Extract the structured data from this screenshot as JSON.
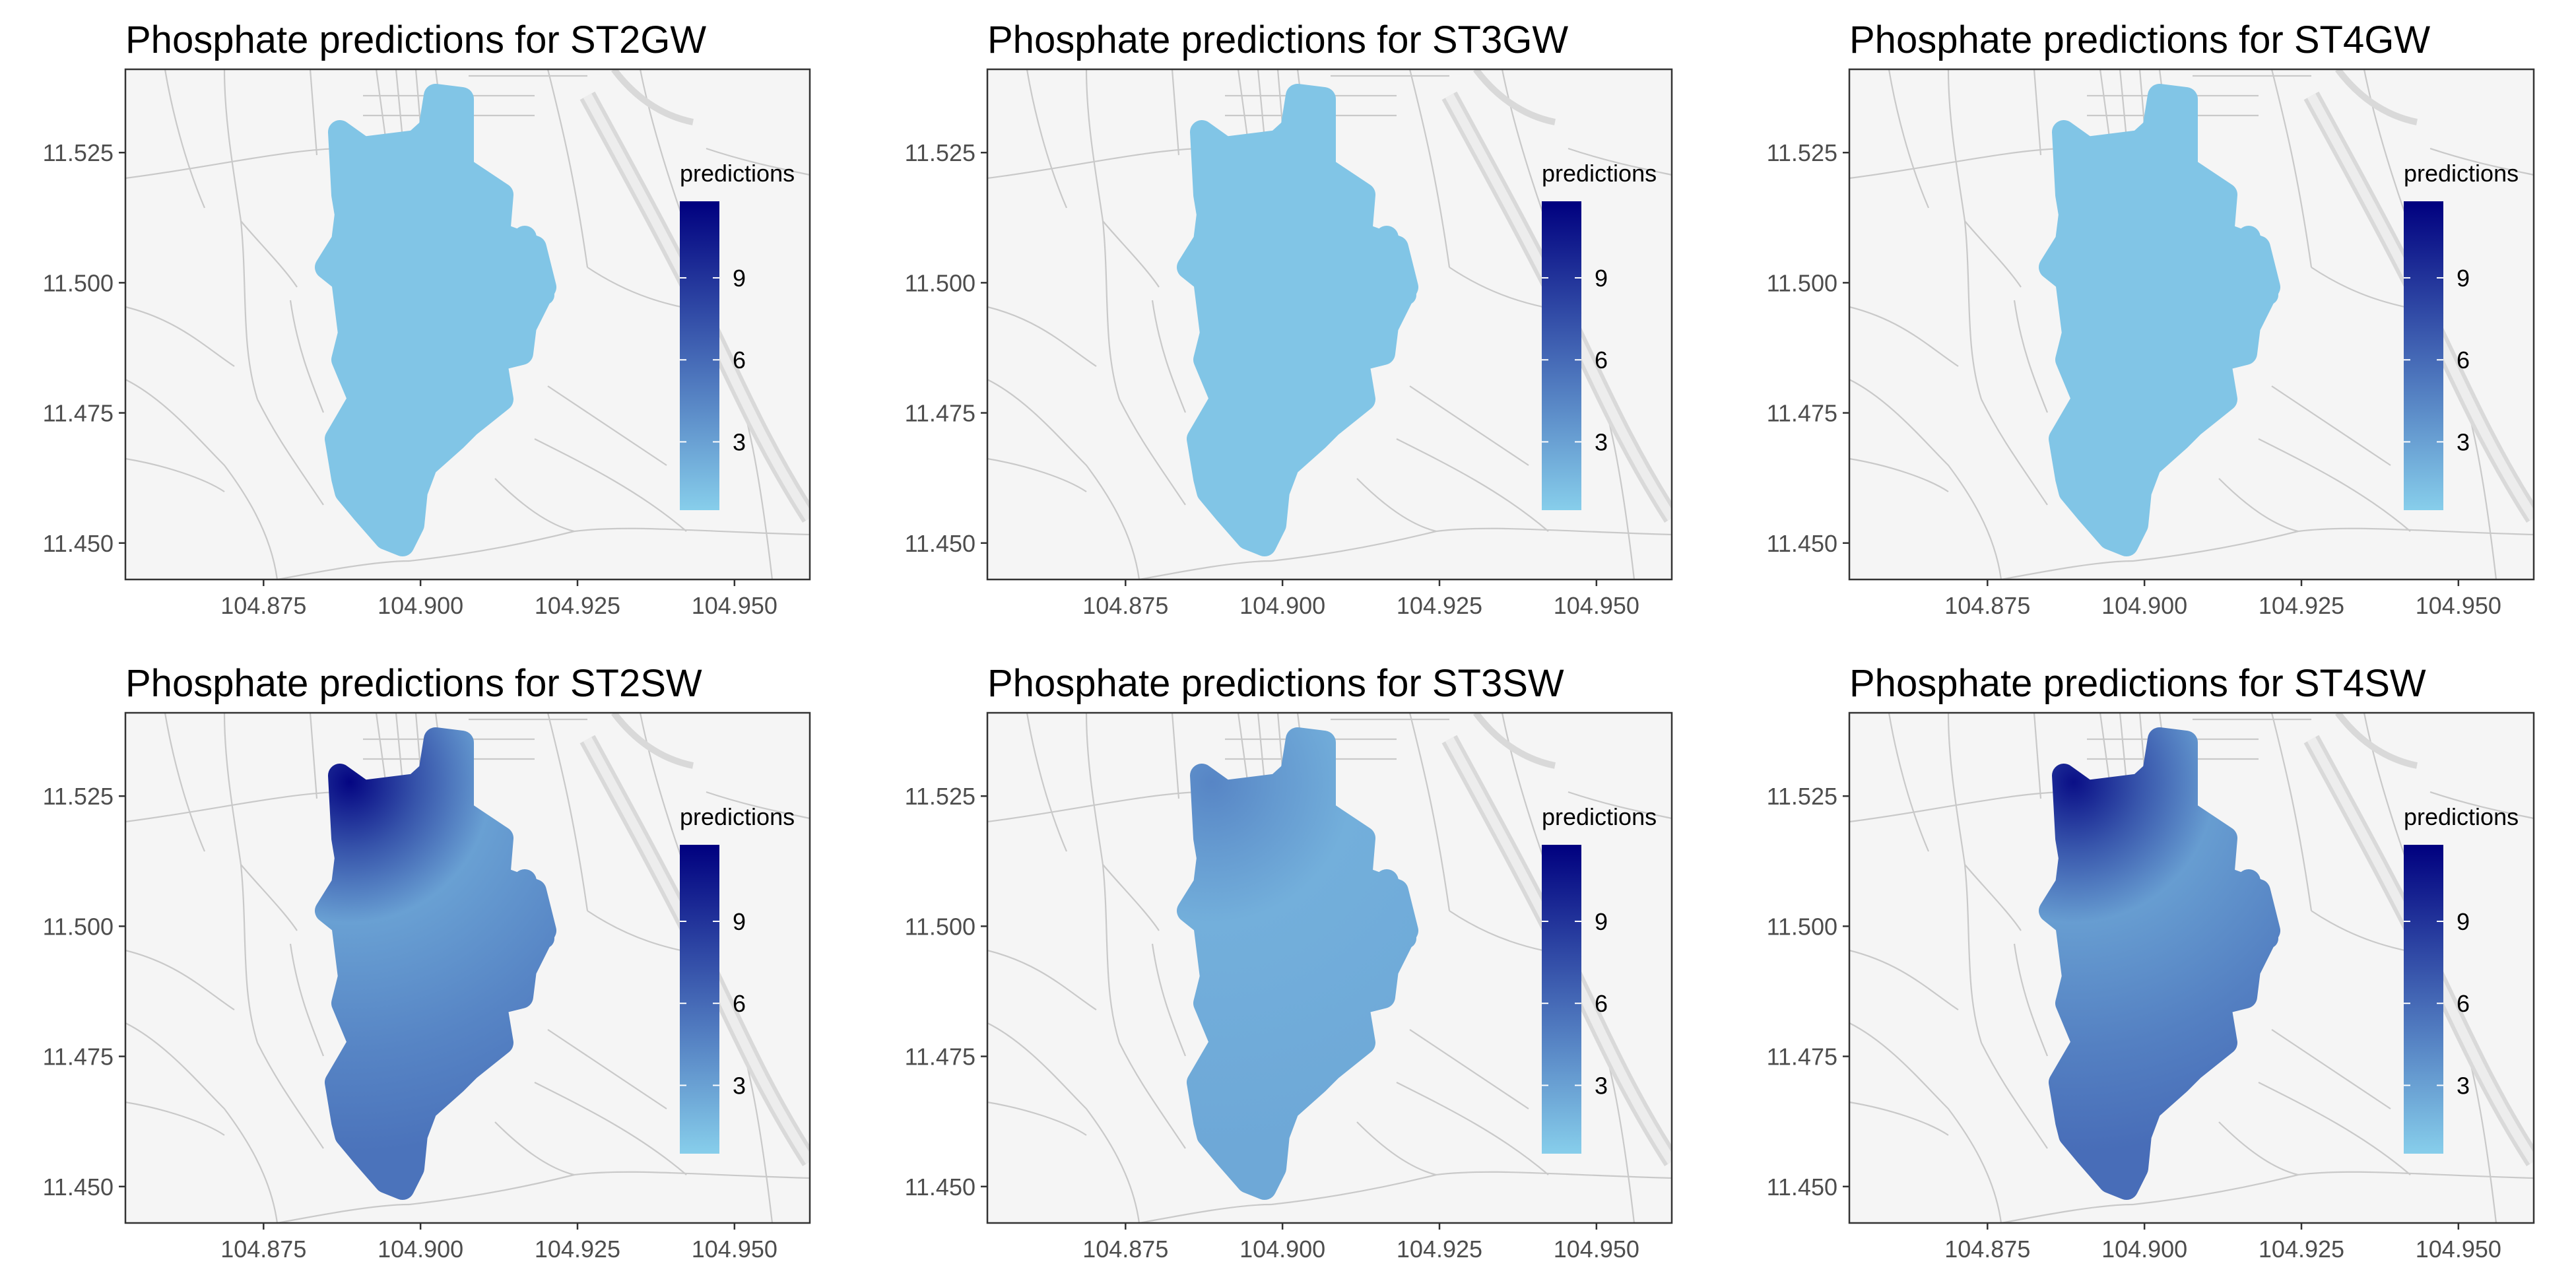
{
  "figure": {
    "panel_title_prefix": "Phosphate predictions for"
  },
  "colors": {
    "scale_low": "#87ceeb",
    "scale_high": "#00007f",
    "map_background": "#f5f5f5",
    "road": "#c9c9c9",
    "major_road": "#d9d9d9",
    "axis_text": "#4d4d4d",
    "title_text": "#000000"
  },
  "chart_data": [
    {
      "type": "heatmap",
      "title": "Phosphate predictions for ST2GW",
      "xlabel": "",
      "ylabel": "",
      "xlim": [
        104.853,
        104.962
      ],
      "ylim": [
        11.443,
        11.541
      ],
      "x_ticks": [
        "104.875",
        "104.900",
        "104.925",
        "104.950"
      ],
      "x_tick_values": [
        104.875,
        104.9,
        104.925,
        104.95
      ],
      "y_ticks": [
        "11.525",
        "11.500",
        "11.475",
        "11.450"
      ],
      "y_tick_values": [
        11.525,
        11.5,
        11.475,
        11.45
      ],
      "legend": {
        "title": "predictions",
        "ticks": [
          "9",
          "6",
          "3"
        ],
        "tick_values": [
          9,
          6,
          3
        ],
        "range": [
          0.5,
          11.8
        ],
        "position": "right"
      },
      "predictions": {
        "hotspot": 1.0,
        "center": 1.0,
        "body": 1.0,
        "east": 1.0
      },
      "grid": false
    },
    {
      "type": "heatmap",
      "title": "Phosphate predictions for ST3GW",
      "xlabel": "",
      "ylabel": "",
      "xlim": [
        104.853,
        104.962
      ],
      "ylim": [
        11.443,
        11.541
      ],
      "x_ticks": [
        "104.875",
        "104.900",
        "104.925",
        "104.950"
      ],
      "x_tick_values": [
        104.875,
        104.9,
        104.925,
        104.95
      ],
      "y_ticks": [
        "11.525",
        "11.500",
        "11.475",
        "11.450"
      ],
      "y_tick_values": [
        11.525,
        11.5,
        11.475,
        11.45
      ],
      "legend": {
        "title": "predictions",
        "ticks": [
          "9",
          "6",
          "3"
        ],
        "tick_values": [
          9,
          6,
          3
        ],
        "range": [
          0.5,
          11.8
        ],
        "position": "right"
      },
      "predictions": {
        "hotspot": 1.0,
        "center": 1.0,
        "body": 1.0,
        "east": 1.0
      },
      "grid": false
    },
    {
      "type": "heatmap",
      "title": "Phosphate predictions for ST4GW",
      "xlabel": "",
      "ylabel": "",
      "xlim": [
        104.853,
        104.962
      ],
      "ylim": [
        11.443,
        11.541
      ],
      "x_ticks": [
        "104.875",
        "104.900",
        "104.925",
        "104.950"
      ],
      "x_tick_values": [
        104.875,
        104.9,
        104.925,
        104.95
      ],
      "y_ticks": [
        "11.525",
        "11.500",
        "11.475",
        "11.450"
      ],
      "y_tick_values": [
        11.525,
        11.5,
        11.475,
        11.45
      ],
      "legend": {
        "title": "predictions",
        "ticks": [
          "9",
          "6",
          "3"
        ],
        "tick_values": [
          9,
          6,
          3
        ],
        "range": [
          0.5,
          11.8
        ],
        "position": "right"
      },
      "predictions": {
        "hotspot": 1.0,
        "center": 1.0,
        "body": 1.0,
        "east": 1.0
      },
      "grid": false
    },
    {
      "type": "heatmap",
      "title": "Phosphate predictions for ST2SW",
      "xlabel": "",
      "ylabel": "",
      "xlim": [
        104.853,
        104.962
      ],
      "ylim": [
        11.443,
        11.541
      ],
      "x_ticks": [
        "104.875",
        "104.900",
        "104.925",
        "104.950"
      ],
      "x_tick_values": [
        104.875,
        104.9,
        104.925,
        104.95
      ],
      "y_ticks": [
        "11.525",
        "11.500",
        "11.475",
        "11.450"
      ],
      "y_tick_values": [
        11.525,
        11.5,
        11.475,
        11.45
      ],
      "legend": {
        "title": "predictions",
        "ticks": [
          "9",
          "6",
          "3"
        ],
        "tick_values": [
          9,
          6,
          3
        ],
        "range": [
          0.5,
          11.8
        ],
        "position": "right"
      },
      "predictions": {
        "hotspot": 11.5,
        "center": 3.0,
        "body": 4.5,
        "east": 5.5
      },
      "grid": false
    },
    {
      "type": "heatmap",
      "title": "Phosphate predictions for ST3SW",
      "xlabel": "",
      "ylabel": "",
      "xlim": [
        104.853,
        104.962
      ],
      "ylim": [
        11.443,
        11.541
      ],
      "x_ticks": [
        "104.875",
        "104.900",
        "104.925",
        "104.950"
      ],
      "x_tick_values": [
        104.875,
        104.9,
        104.925,
        104.95
      ],
      "y_ticks": [
        "11.525",
        "11.500",
        "11.475",
        "11.450"
      ],
      "y_tick_values": [
        11.525,
        11.5,
        11.475,
        11.45
      ],
      "legend": {
        "title": "predictions",
        "ticks": [
          "9",
          "6",
          "3"
        ],
        "tick_values": [
          9,
          6,
          3
        ],
        "range": [
          0.5,
          11.8
        ],
        "position": "right"
      },
      "predictions": {
        "hotspot": 4.5,
        "center": 2.2,
        "body": 2.4,
        "east": 2.6
      },
      "grid": false
    },
    {
      "type": "heatmap",
      "title": "Phosphate predictions for ST4SW",
      "xlabel": "",
      "ylabel": "",
      "xlim": [
        104.853,
        104.962
      ],
      "ylim": [
        11.443,
        11.541
      ],
      "x_ticks": [
        "104.875",
        "104.900",
        "104.925",
        "104.950"
      ],
      "x_tick_values": [
        104.875,
        104.9,
        104.925,
        104.95
      ],
      "y_ticks": [
        "11.525",
        "11.500",
        "11.475",
        "11.450"
      ],
      "y_tick_values": [
        11.525,
        11.5,
        11.475,
        11.45
      ],
      "legend": {
        "title": "predictions",
        "ticks": [
          "9",
          "6",
          "3"
        ],
        "tick_values": [
          9,
          6,
          3
        ],
        "range": [
          0.5,
          11.8
        ],
        "position": "right"
      },
      "predictions": {
        "hotspot": 11.0,
        "center": 3.2,
        "body": 4.8,
        "east": 5.8
      },
      "grid": false
    }
  ]
}
